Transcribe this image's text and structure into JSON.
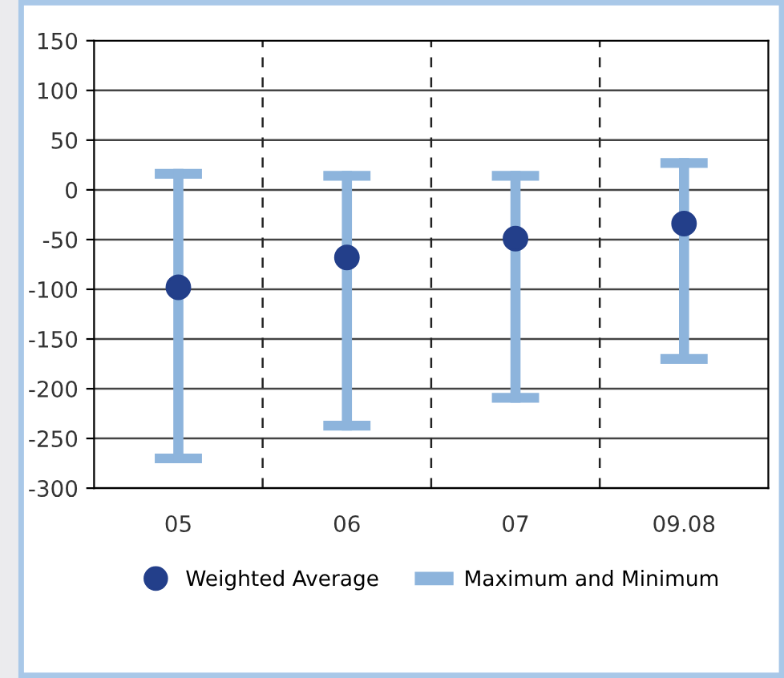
{
  "chart_data": {
    "type": "scatter",
    "categories": [
      "05",
      "06",
      "07",
      "09.08"
    ],
    "series": [
      {
        "name": "Maximum and Minimum",
        "type": "bar",
        "color": "#8db4dc",
        "base": [
          -275,
          -242,
          -214,
          -175
        ],
        "values": [
          296,
          261,
          233,
          207
        ]
      },
      {
        "name": "Weighted Average",
        "color": "#233f8a",
        "values": [
          -98,
          -68,
          -49,
          -34
        ]
      }
    ],
    "ylim": [
      -300,
      150
    ],
    "yticks": [
      -300,
      -250,
      -200,
      -150,
      -100,
      -50,
      0,
      50,
      100,
      150
    ],
    "grid": true,
    "legend": "bottom",
    "marker": "circle"
  }
}
